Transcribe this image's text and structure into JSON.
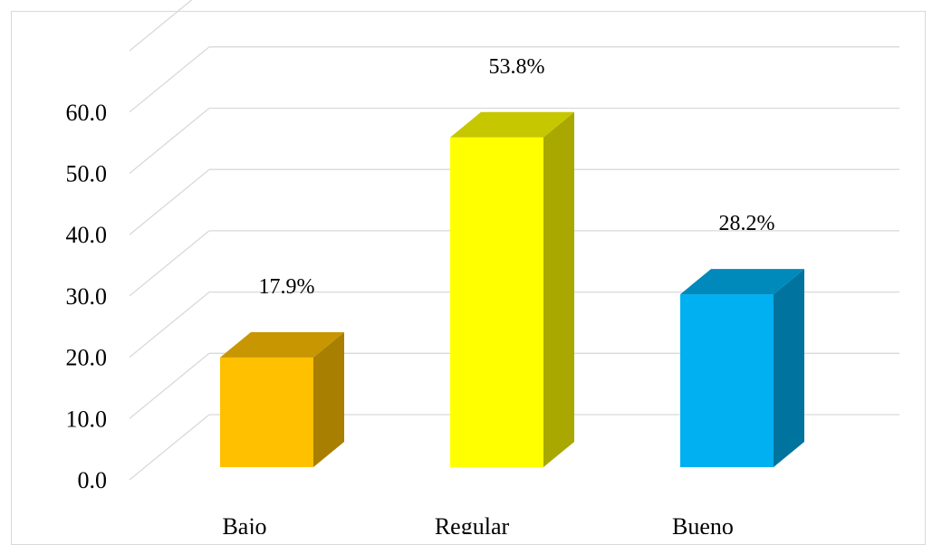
{
  "chart_data": {
    "type": "bar",
    "categories": [
      "Bajo",
      "Regular",
      "Bueno"
    ],
    "values": [
      17.9,
      53.8,
      28.2
    ],
    "data_labels": [
      "17.9%",
      "53.8%",
      "28.2%"
    ],
    "colors": [
      "#FFC000",
      "#FFFF00",
      "#00B0F0"
    ],
    "ylim": [
      0,
      70
    ],
    "yticks": [
      0.0,
      10.0,
      20.0,
      30.0,
      40.0,
      50.0,
      60.0
    ],
    "ytick_labels": [
      "0.0",
      "10.0",
      "20.0",
      "30.0",
      "40.0",
      "50.0",
      "60.0"
    ],
    "title": "",
    "xlabel": "",
    "ylabel": "",
    "grid": true,
    "style": "3d-column",
    "legend": "none"
  }
}
